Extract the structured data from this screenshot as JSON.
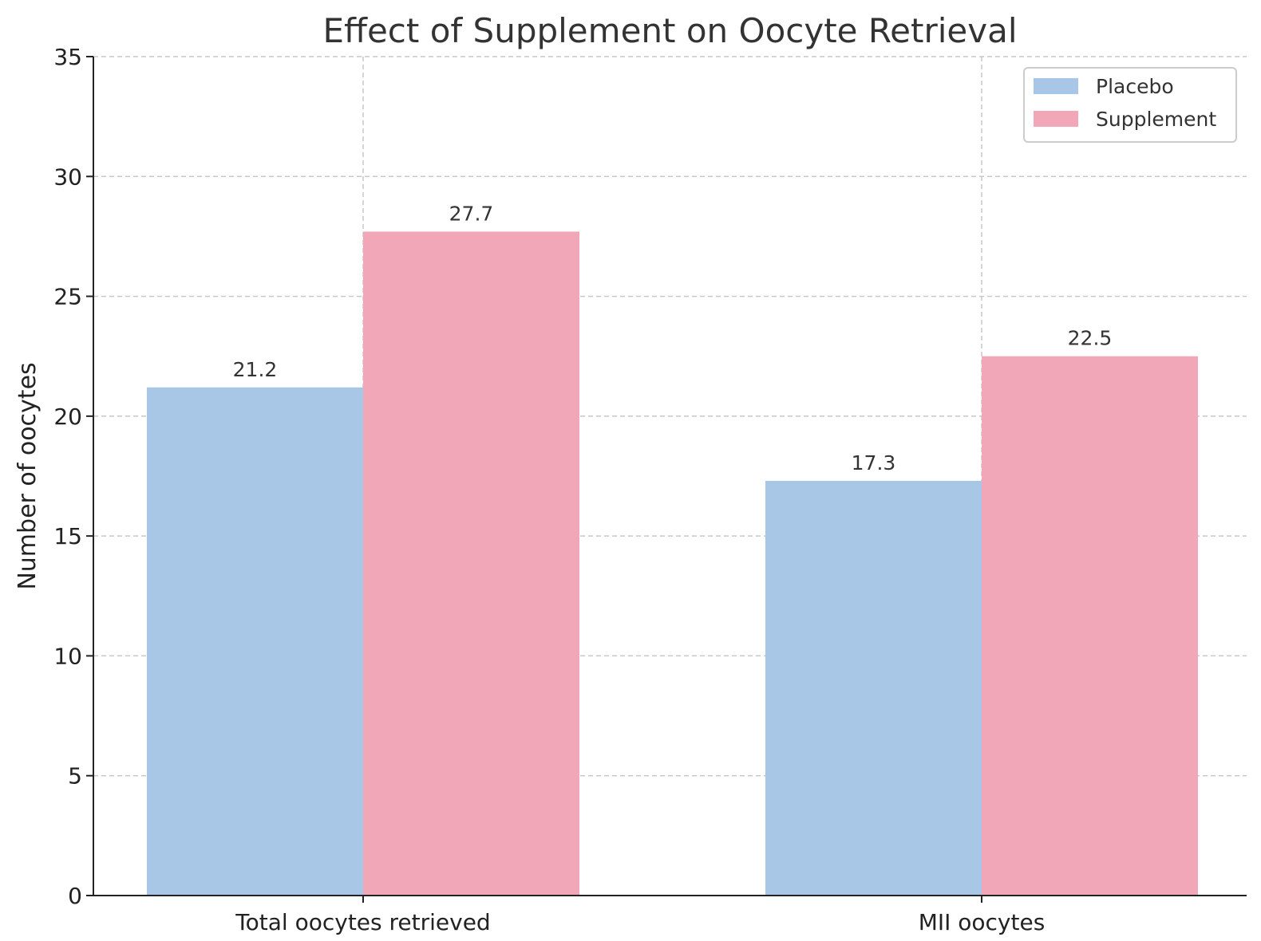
{
  "chart_data": {
    "type": "bar",
    "title": "Effect of Supplement on Oocyte Retrieval",
    "xlabel": "",
    "ylabel": "Number of oocytes",
    "categories": [
      "Total oocytes retrieved",
      "MII oocytes"
    ],
    "series": [
      {
        "name": "Placebo",
        "values": [
          21.2,
          17.3
        ],
        "color": "#a8c6e5"
      },
      {
        "name": "Supplement",
        "values": [
          27.7,
          22.5
        ],
        "color": "#f2a7b8"
      }
    ],
    "ylim": [
      0,
      35
    ],
    "yticks": [
      0,
      5,
      10,
      15,
      20,
      25,
      30,
      35
    ],
    "grid": true,
    "legend": "top-right"
  }
}
